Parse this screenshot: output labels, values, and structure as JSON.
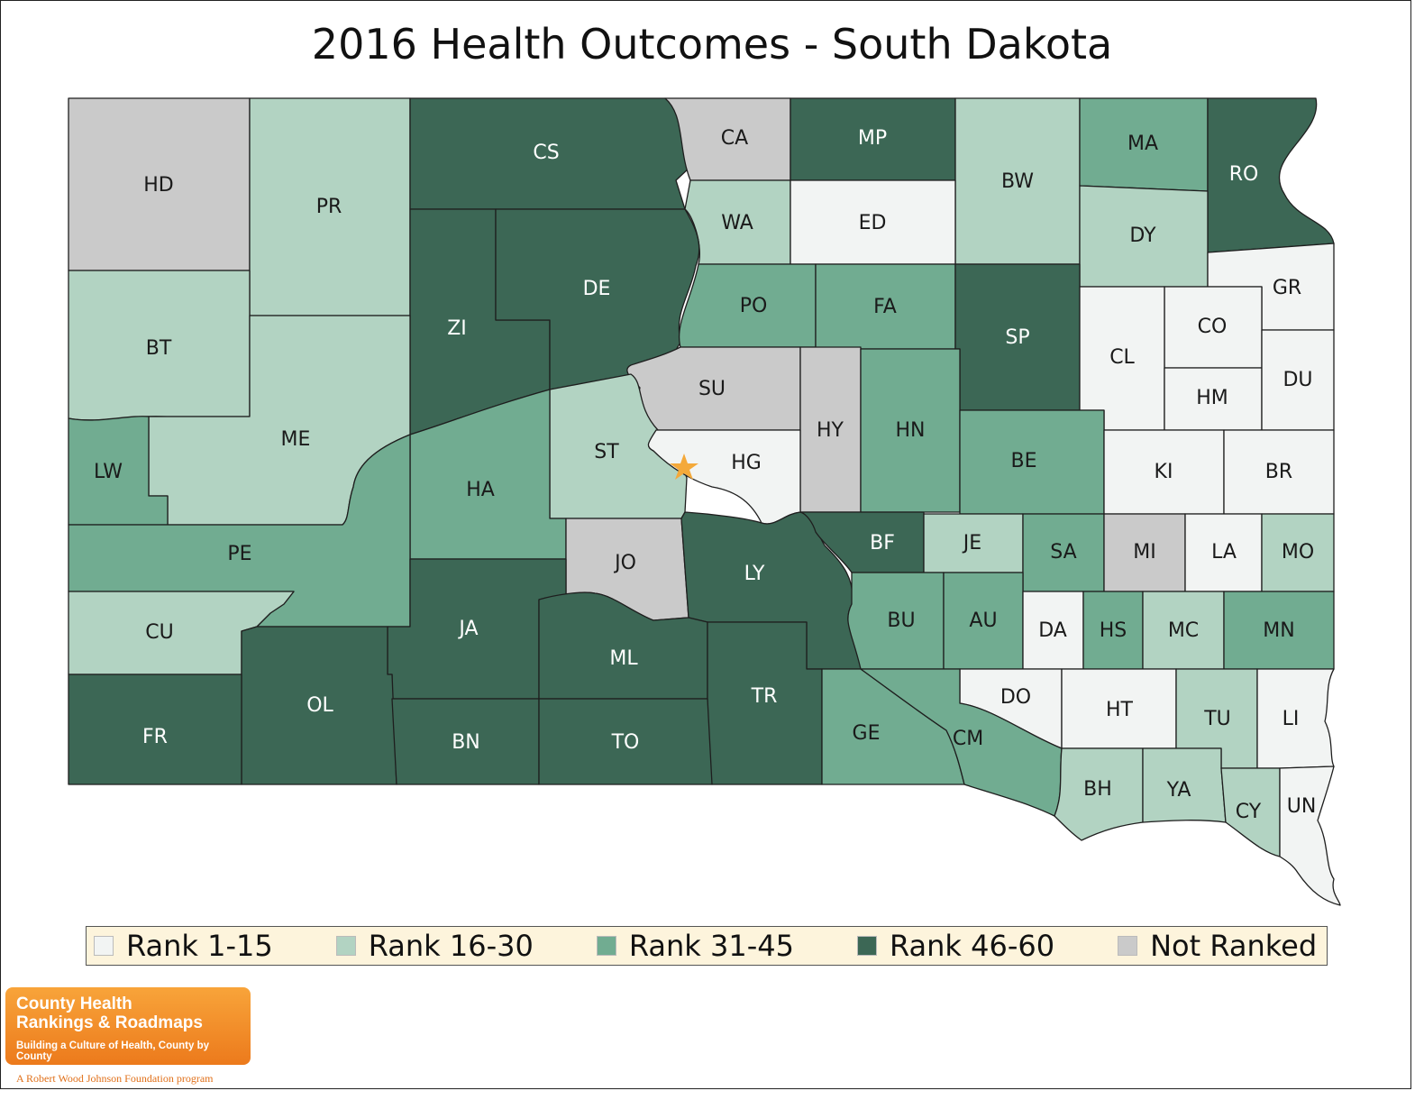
{
  "title": "2016 Health Outcomes - South Dakota",
  "colors": {
    "rank_1_15": "#f2f4f3",
    "rank_16_30": "#b2d3c2",
    "rank_31_45": "#71ac91",
    "rank_46_60": "#3c6755",
    "not_ranked": "#cacaca",
    "star": "#f4a93a"
  },
  "legend": [
    {
      "label": "Rank 1-15",
      "category": "rank_1_15"
    },
    {
      "label": "Rank 16-30",
      "category": "rank_16_30"
    },
    {
      "label": "Rank 31-45",
      "category": "rank_31_45"
    },
    {
      "label": "Rank 46-60",
      "category": "rank_46_60"
    },
    {
      "label": "Not Ranked",
      "category": "not_ranked"
    }
  ],
  "counties": [
    {
      "abbr": "HD",
      "category": "not_ranked"
    },
    {
      "abbr": "PR",
      "category": "rank_16_30"
    },
    {
      "abbr": "CS",
      "category": "rank_46_60"
    },
    {
      "abbr": "CA",
      "category": "not_ranked"
    },
    {
      "abbr": "MP",
      "category": "rank_46_60"
    },
    {
      "abbr": "BW",
      "category": "rank_16_30"
    },
    {
      "abbr": "MA",
      "category": "rank_31_45"
    },
    {
      "abbr": "RO",
      "category": "rank_46_60"
    },
    {
      "abbr": "WA",
      "category": "rank_16_30"
    },
    {
      "abbr": "ED",
      "category": "rank_1_15"
    },
    {
      "abbr": "DY",
      "category": "rank_16_30"
    },
    {
      "abbr": "BT",
      "category": "rank_16_30"
    },
    {
      "abbr": "ZI",
      "category": "rank_46_60"
    },
    {
      "abbr": "DE",
      "category": "rank_46_60"
    },
    {
      "abbr": "PO",
      "category": "rank_31_45"
    },
    {
      "abbr": "FA",
      "category": "rank_31_45"
    },
    {
      "abbr": "SP",
      "category": "rank_46_60"
    },
    {
      "abbr": "GR",
      "category": "rank_1_15"
    },
    {
      "abbr": "CO",
      "category": "rank_1_15"
    },
    {
      "abbr": "CL",
      "category": "rank_1_15"
    },
    {
      "abbr": "HM",
      "category": "rank_1_15"
    },
    {
      "abbr": "DU",
      "category": "rank_1_15"
    },
    {
      "abbr": "ME",
      "category": "rank_16_30"
    },
    {
      "abbr": "SU",
      "category": "not_ranked"
    },
    {
      "abbr": "HY",
      "category": "not_ranked"
    },
    {
      "abbr": "HN",
      "category": "rank_31_45"
    },
    {
      "abbr": "LW",
      "category": "rank_31_45"
    },
    {
      "abbr": "ST",
      "category": "rank_16_30"
    },
    {
      "abbr": "HG",
      "category": "rank_1_15"
    },
    {
      "abbr": "BE",
      "category": "rank_31_45"
    },
    {
      "abbr": "KI",
      "category": "rank_1_15"
    },
    {
      "abbr": "BR",
      "category": "rank_1_15"
    },
    {
      "abbr": "HA",
      "category": "rank_31_45"
    },
    {
      "abbr": "PE",
      "category": "rank_31_45"
    },
    {
      "abbr": "JO",
      "category": "not_ranked"
    },
    {
      "abbr": "LY",
      "category": "rank_46_60"
    },
    {
      "abbr": "BF",
      "category": "rank_46_60"
    },
    {
      "abbr": "JE",
      "category": "rank_16_30"
    },
    {
      "abbr": "SA",
      "category": "rank_31_45"
    },
    {
      "abbr": "MI",
      "category": "not_ranked"
    },
    {
      "abbr": "LA",
      "category": "rank_1_15"
    },
    {
      "abbr": "MO",
      "category": "rank_16_30"
    },
    {
      "abbr": "CU",
      "category": "rank_16_30"
    },
    {
      "abbr": "JA",
      "category": "rank_46_60"
    },
    {
      "abbr": "ML",
      "category": "rank_46_60"
    },
    {
      "abbr": "BU",
      "category": "rank_31_45"
    },
    {
      "abbr": "AU",
      "category": "rank_31_45"
    },
    {
      "abbr": "DA",
      "category": "rank_1_15"
    },
    {
      "abbr": "HS",
      "category": "rank_31_45"
    },
    {
      "abbr": "MC",
      "category": "rank_16_30"
    },
    {
      "abbr": "MN",
      "category": "rank_31_45"
    },
    {
      "abbr": "OL",
      "category": "rank_46_60"
    },
    {
      "abbr": "TR",
      "category": "rank_46_60"
    },
    {
      "abbr": "DO",
      "category": "rank_1_15"
    },
    {
      "abbr": "HT",
      "category": "rank_1_15"
    },
    {
      "abbr": "TU",
      "category": "rank_16_30"
    },
    {
      "abbr": "LI",
      "category": "rank_1_15"
    },
    {
      "abbr": "FR",
      "category": "rank_46_60"
    },
    {
      "abbr": "BN",
      "category": "rank_46_60"
    },
    {
      "abbr": "TO",
      "category": "rank_46_60"
    },
    {
      "abbr": "GE",
      "category": "rank_31_45"
    },
    {
      "abbr": "CM",
      "category": "rank_31_45"
    },
    {
      "abbr": "BH",
      "category": "rank_16_30"
    },
    {
      "abbr": "YA",
      "category": "rank_16_30"
    },
    {
      "abbr": "CY",
      "category": "rank_16_30"
    },
    {
      "abbr": "UN",
      "category": "rank_1_15"
    }
  ],
  "logo": {
    "line1": "County Health",
    "line2": "Rankings & Roadmaps",
    "tagline": "Building a Culture of Health, County by County",
    "footer": "A Robert Wood Johnson Foundation program"
  }
}
